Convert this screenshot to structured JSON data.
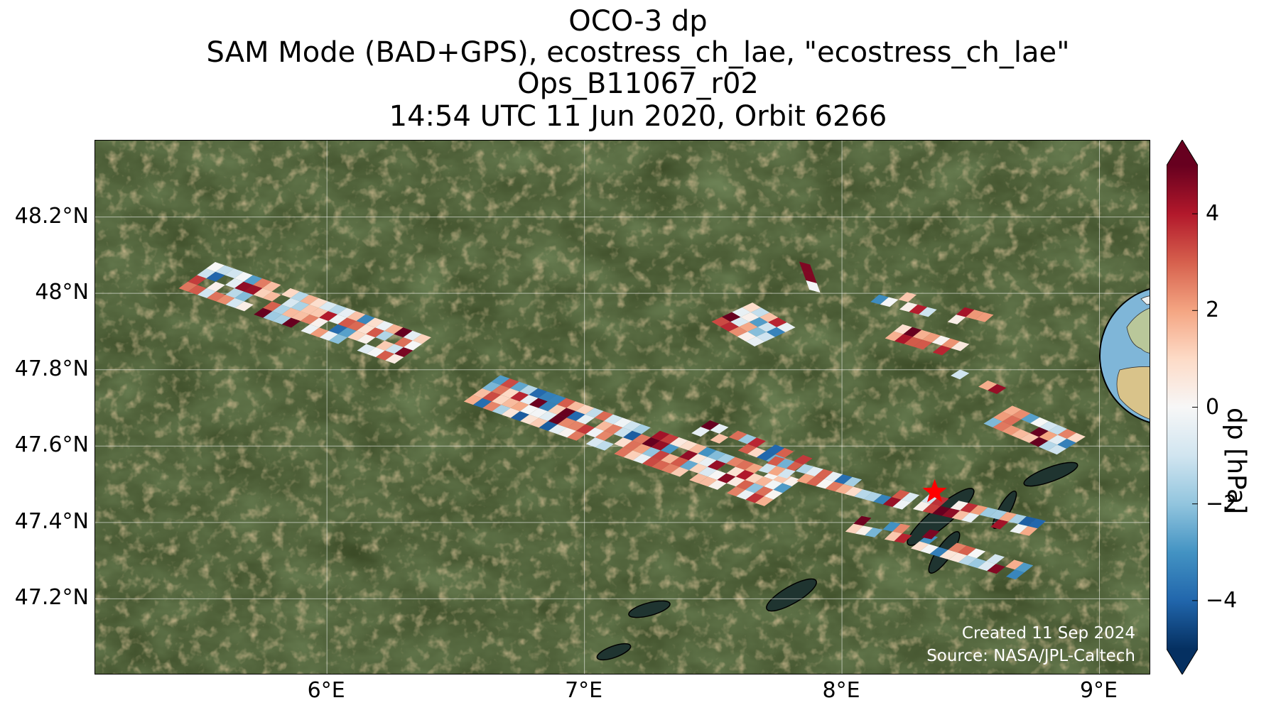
{
  "title": {
    "line1": "OCO-3 dp",
    "line2": "SAM Mode (BAD+GPS), ecostress_ch_lae, \"ecostress_ch_lae\"",
    "line3": "Ops_B11067_r02",
    "line4": "14:54 UTC 11 Jun 2020, Orbit 6266"
  },
  "map": {
    "extent": {
      "lon_min": 5.1,
      "lon_max": 9.2,
      "lat_min": 47.0,
      "lat_max": 48.4
    },
    "lat_ticks": [
      {
        "value": 48.2,
        "label": "48.2°N"
      },
      {
        "value": 48.0,
        "label": "48°N"
      },
      {
        "value": 47.8,
        "label": "47.8°N"
      },
      {
        "value": 47.6,
        "label": "47.6°N"
      },
      {
        "value": 47.4,
        "label": "47.4°N"
      },
      {
        "value": 47.2,
        "label": "47.2°N"
      }
    ],
    "lon_ticks": [
      {
        "value": 6,
        "label": "6°E"
      },
      {
        "value": 7,
        "label": "7°E"
      },
      {
        "value": 8,
        "label": "8°E"
      },
      {
        "value": 9,
        "label": "9°E"
      }
    ],
    "target": {
      "lon": 8.36,
      "lat": 47.48,
      "marker": "red-star"
    },
    "colors": {
      "land_base": "#3b4a26",
      "lake": "#1f3430",
      "grid": "#ffffff",
      "target": "#ff0000"
    }
  },
  "colorbar": {
    "label": "dp [hPa]",
    "vmin": -5,
    "vmax": 5,
    "ticks": [
      {
        "value": 4,
        "label": "4"
      },
      {
        "value": 2,
        "label": "2"
      },
      {
        "value": 0,
        "label": "0"
      },
      {
        "value": -2,
        "label": "−2"
      },
      {
        "value": -4,
        "label": "−4"
      }
    ],
    "colormap": "RdBu_r",
    "extend": "both"
  },
  "credits": {
    "created": "Created 11 Sep 2024",
    "source": "Source: NASA/JPL-Caltech"
  },
  "inset": {
    "icon": "globe-europe-icon",
    "marker": "red-star"
  },
  "chart_data": {
    "type": "heatmap",
    "xlabel": "",
    "ylabel": "",
    "value_label": "dp [hPa]",
    "xlim": [
      5.1,
      9.2
    ],
    "ylim": [
      47.0,
      48.4
    ],
    "swaths": [
      {
        "lon_start": 5.5,
        "lat_start": 48.05,
        "lon_end": 6.35,
        "lat_end": 47.85,
        "width": 0.09,
        "seed": 1,
        "fill": 0.85
      },
      {
        "lon_start": 6.6,
        "lat_start": 47.75,
        "lon_end": 7.75,
        "lat_end": 47.48,
        "width": 0.1,
        "seed": 2,
        "fill": 0.9
      },
      {
        "lon_start": 7.45,
        "lat_start": 47.65,
        "lon_end": 7.85,
        "lat_end": 47.55,
        "width": 0.05,
        "seed": 3,
        "fill": 0.7
      },
      {
        "lon_start": 7.7,
        "lat_start": 47.55,
        "lon_end": 8.25,
        "lat_end": 47.45,
        "width": 0.06,
        "seed": 4,
        "fill": 0.7
      },
      {
        "lon_start": 7.57,
        "lat_start": 47.95,
        "lon_end": 7.75,
        "lat_end": 47.88,
        "width": 0.1,
        "seed": 5,
        "fill": 0.95
      },
      {
        "lon_start": 8.3,
        "lat_start": 47.45,
        "lon_end": 8.75,
        "lat_end": 47.38,
        "width": 0.06,
        "seed": 6,
        "fill": 0.85
      },
      {
        "lon_start": 8.3,
        "lat_start": 47.35,
        "lon_end": 8.7,
        "lat_end": 47.27,
        "width": 0.05,
        "seed": 7,
        "fill": 0.7
      },
      {
        "lon_start": 8.05,
        "lat_start": 47.4,
        "lon_end": 8.35,
        "lat_end": 47.36,
        "width": 0.04,
        "seed": 8,
        "fill": 0.6
      },
      {
        "lon_start": 8.6,
        "lat_start": 47.68,
        "lon_end": 8.88,
        "lat_end": 47.6,
        "width": 0.08,
        "seed": 9,
        "fill": 0.85
      },
      {
        "lon_start": 8.2,
        "lat_start": 47.9,
        "lon_end": 8.45,
        "lat_end": 47.85,
        "width": 0.05,
        "seed": 10,
        "fill": 0.55
      },
      {
        "lon_start": 8.15,
        "lat_start": 48.0,
        "lon_end": 8.55,
        "lat_end": 47.93,
        "width": 0.04,
        "seed": 11,
        "fill": 0.4
      },
      {
        "lon_start": 8.4,
        "lat_start": 47.8,
        "lon_end": 8.7,
        "lat_end": 47.72,
        "width": 0.03,
        "seed": 12,
        "fill": 0.4
      },
      {
        "lon_start": 7.85,
        "lat_start": 48.08,
        "lon_end": 7.92,
        "lat_end": 47.95,
        "width": 0.03,
        "seed": 13,
        "fill": 0.6
      }
    ]
  }
}
